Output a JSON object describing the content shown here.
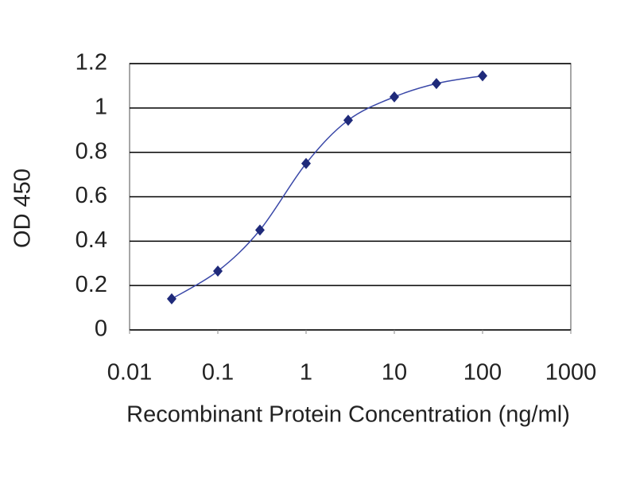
{
  "chart_data": {
    "type": "line",
    "xscale": "log",
    "xlabel": "Recombinant Protein Concentration (ng/ml)",
    "ylabel": "OD 450",
    "x": [
      0.03,
      0.1,
      0.3,
      1,
      3,
      10,
      30,
      100
    ],
    "series": [
      {
        "color": "#1f2a7a",
        "values": [
          0.14,
          0.265,
          0.45,
          0.75,
          0.945,
          1.05,
          1.11,
          1.145
        ]
      }
    ],
    "xlim": [
      0.01,
      1000
    ],
    "xticks": [
      0.01,
      0.1,
      1,
      10,
      100,
      1000
    ],
    "ylim": [
      0,
      1.2
    ],
    "yticks": [
      0,
      0.2,
      0.4,
      0.6,
      0.8,
      1,
      1.2
    ],
    "grid": true
  }
}
